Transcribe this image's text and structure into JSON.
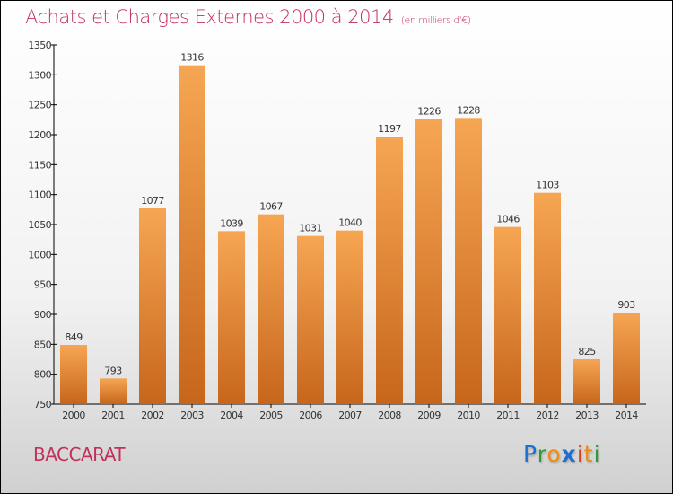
{
  "chart_data": {
    "type": "bar",
    "title": "Achats et Charges Externes 2000 à 2014",
    "unit": "(en milliers d'€)",
    "categories": [
      "2000",
      "2001",
      "2002",
      "2003",
      "2004",
      "2005",
      "2006",
      "2007",
      "2008",
      "2009",
      "2010",
      "2011",
      "2012",
      "2013",
      "2014"
    ],
    "values": [
      849,
      793,
      1077,
      1316,
      1039,
      1067,
      1031,
      1040,
      1197,
      1226,
      1228,
      1046,
      1103,
      825,
      903
    ],
    "ylim": [
      750,
      1350
    ],
    "yticks": [
      750,
      800,
      850,
      900,
      950,
      1000,
      1050,
      1100,
      1150,
      1200,
      1250,
      1300,
      1350
    ],
    "xlabel": "",
    "ylabel": "",
    "colors": {
      "bar_top": "#f6a653",
      "bar_bottom": "#c7661b",
      "title": "#c2305c"
    }
  },
  "location": "BACCARAT",
  "logo": {
    "letters": [
      "P",
      "r",
      "o",
      "x",
      "i",
      "t",
      "i"
    ],
    "colors": [
      "#1a6fd0",
      "#2e9a3a",
      "#f08a10",
      "#1a6fd0",
      "#e03a1a",
      "#f08a10",
      "#2e9a3a"
    ]
  }
}
